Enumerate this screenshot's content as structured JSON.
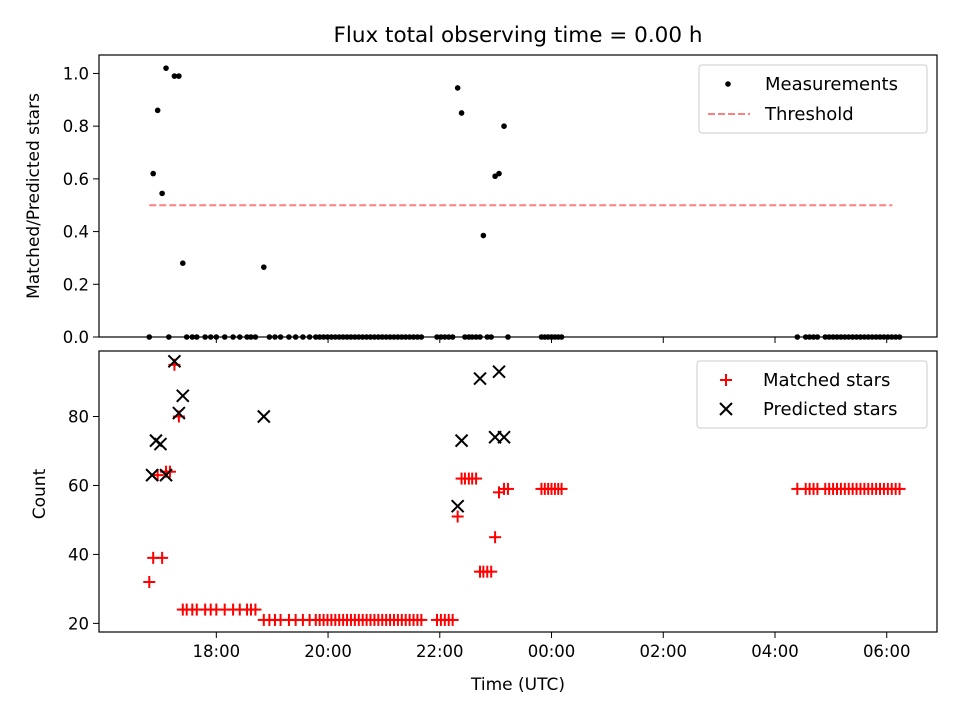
{
  "chart_data": [
    {
      "type": "scatter",
      "title": "Flux total observing time = 0.00 h",
      "ylabel": "Matched/Predicted stars",
      "xlabel": "",
      "xlim_hours": [
        15.9,
        30.9
      ],
      "ylim": [
        0,
        1.07
      ],
      "yticks": [
        0.0,
        0.2,
        0.4,
        0.6,
        0.8,
        1.0
      ],
      "ytick_labels": [
        "0.0",
        "0.2",
        "0.4",
        "0.6",
        "0.8",
        "1.0"
      ],
      "xticks_hours": [
        18,
        20,
        22,
        24,
        26,
        28,
        30
      ],
      "legend": {
        "placement": "top-right",
        "entries": [
          "Measurements",
          "Threshold"
        ]
      },
      "threshold": {
        "value": 0.5,
        "x_start": 16.8,
        "x_end": 30.1,
        "color": "#ff7f7f"
      },
      "series": [
        {
          "name": "Measurements",
          "color": "#000000",
          "points": [
            [
              16.8,
              0.0
            ],
            [
              16.87,
              0.62
            ],
            [
              16.95,
              0.86
            ],
            [
              17.03,
              0.545
            ],
            [
              17.1,
              1.02
            ],
            [
              17.15,
              0.0
            ],
            [
              17.25,
              0.99
            ],
            [
              17.33,
              0.99
            ],
            [
              17.4,
              0.28
            ],
            [
              17.47,
              0.0
            ],
            [
              17.57,
              0.0
            ],
            [
              17.65,
              0.0
            ],
            [
              17.8,
              0.0
            ],
            [
              17.9,
              0.0
            ],
            [
              18.0,
              0.0
            ],
            [
              18.15,
              0.0
            ],
            [
              18.3,
              0.0
            ],
            [
              18.42,
              0.0
            ],
            [
              18.55,
              0.0
            ],
            [
              18.62,
              0.0
            ],
            [
              18.7,
              0.0
            ],
            [
              18.85,
              0.265
            ],
            [
              18.95,
              0.0
            ],
            [
              19.05,
              0.0
            ],
            [
              19.15,
              0.0
            ],
            [
              19.3,
              0.0
            ],
            [
              19.42,
              0.0
            ],
            [
              19.55,
              0.0
            ],
            [
              19.67,
              0.0
            ],
            [
              19.78,
              0.0
            ],
            [
              19.85,
              0.0
            ],
            [
              19.92,
              0.0
            ],
            [
              19.99,
              0.0
            ],
            [
              20.06,
              0.0
            ],
            [
              20.13,
              0.0
            ],
            [
              20.2,
              0.0
            ],
            [
              20.27,
              0.0
            ],
            [
              20.34,
              0.0
            ],
            [
              20.41,
              0.0
            ],
            [
              20.48,
              0.0
            ],
            [
              20.55,
              0.0
            ],
            [
              20.62,
              0.0
            ],
            [
              20.69,
              0.0
            ],
            [
              20.76,
              0.0
            ],
            [
              20.83,
              0.0
            ],
            [
              20.9,
              0.0
            ],
            [
              20.97,
              0.0
            ],
            [
              21.04,
              0.0
            ],
            [
              21.11,
              0.0
            ],
            [
              21.18,
              0.0
            ],
            [
              21.25,
              0.0
            ],
            [
              21.32,
              0.0
            ],
            [
              21.39,
              0.0
            ],
            [
              21.46,
              0.0
            ],
            [
              21.53,
              0.0
            ],
            [
              21.6,
              0.0
            ],
            [
              21.67,
              0.0
            ],
            [
              21.95,
              0.0
            ],
            [
              22.02,
              0.0
            ],
            [
              22.09,
              0.0
            ],
            [
              22.16,
              0.0
            ],
            [
              22.23,
              0.0
            ],
            [
              22.32,
              0.945
            ],
            [
              22.39,
              0.85
            ],
            [
              22.45,
              0.0
            ],
            [
              22.52,
              0.0
            ],
            [
              22.58,
              0.0
            ],
            [
              22.65,
              0.0
            ],
            [
              22.72,
              0.0
            ],
            [
              22.78,
              0.385
            ],
            [
              22.85,
              0.0
            ],
            [
              22.92,
              0.0
            ],
            [
              22.99,
              0.61
            ],
            [
              23.06,
              0.62
            ],
            [
              23.15,
              0.8
            ],
            [
              23.22,
              0.0
            ],
            [
              23.82,
              0.0
            ],
            [
              23.88,
              0.0
            ],
            [
              23.94,
              0.0
            ],
            [
              24.0,
              0.0
            ],
            [
              24.06,
              0.0
            ],
            [
              24.12,
              0.0
            ],
            [
              24.18,
              0.0
            ],
            [
              28.4,
              0.0
            ],
            [
              28.55,
              0.0
            ],
            [
              28.62,
              0.0
            ],
            [
              28.69,
              0.0
            ],
            [
              28.76,
              0.0
            ],
            [
              28.9,
              0.0
            ],
            [
              28.97,
              0.0
            ],
            [
              29.04,
              0.0
            ],
            [
              29.11,
              0.0
            ],
            [
              29.18,
              0.0
            ],
            [
              29.25,
              0.0
            ],
            [
              29.32,
              0.0
            ],
            [
              29.39,
              0.0
            ],
            [
              29.46,
              0.0
            ],
            [
              29.53,
              0.0
            ],
            [
              29.6,
              0.0
            ],
            [
              29.67,
              0.0
            ],
            [
              29.74,
              0.0
            ],
            [
              29.81,
              0.0
            ],
            [
              29.88,
              0.0
            ],
            [
              29.95,
              0.0
            ],
            [
              30.02,
              0.0
            ],
            [
              30.09,
              0.0
            ],
            [
              30.16,
              0.0
            ],
            [
              30.23,
              0.0
            ]
          ]
        }
      ]
    },
    {
      "type": "scatter",
      "title": "",
      "ylabel": "Count",
      "xlabel": "Time (UTC)",
      "xlim_hours": [
        15.9,
        30.9
      ],
      "ylim": [
        17.5,
        99
      ],
      "yticks": [
        20,
        40,
        60,
        80
      ],
      "ytick_labels": [
        "20",
        "40",
        "60",
        "80"
      ],
      "xticks_hours": [
        18,
        20,
        22,
        24,
        26,
        28,
        30
      ],
      "xtick_labels": [
        "18:00",
        "20:00",
        "22:00",
        "00:00",
        "02:00",
        "04:00",
        "06:00"
      ],
      "legend": {
        "placement": "top-right",
        "entries": [
          "Matched stars",
          "Predicted stars"
        ]
      },
      "series": [
        {
          "name": "Matched stars",
          "color": "#ff0000",
          "marker": "plus",
          "points": [
            [
              16.8,
              32
            ],
            [
              16.87,
              39
            ],
            [
              16.95,
              63
            ],
            [
              17.03,
              39
            ],
            [
              17.1,
              64
            ],
            [
              17.17,
              64
            ],
            [
              17.25,
              95
            ],
            [
              17.33,
              80
            ],
            [
              17.4,
              24
            ],
            [
              17.47,
              24
            ],
            [
              17.57,
              24
            ],
            [
              17.65,
              24
            ],
            [
              17.8,
              24
            ],
            [
              17.9,
              24
            ],
            [
              18.0,
              24
            ],
            [
              18.15,
              24
            ],
            [
              18.3,
              24
            ],
            [
              18.42,
              24
            ],
            [
              18.55,
              24
            ],
            [
              18.62,
              24
            ],
            [
              18.7,
              24
            ],
            [
              18.85,
              21
            ],
            [
              18.95,
              21
            ],
            [
              19.05,
              21
            ],
            [
              19.15,
              21
            ],
            [
              19.3,
              21
            ],
            [
              19.42,
              21
            ],
            [
              19.55,
              21
            ],
            [
              19.67,
              21
            ],
            [
              19.78,
              21
            ],
            [
              19.85,
              21
            ],
            [
              19.92,
              21
            ],
            [
              19.99,
              21
            ],
            [
              20.06,
              21
            ],
            [
              20.13,
              21
            ],
            [
              20.2,
              21
            ],
            [
              20.27,
              21
            ],
            [
              20.34,
              21
            ],
            [
              20.41,
              21
            ],
            [
              20.48,
              21
            ],
            [
              20.55,
              21
            ],
            [
              20.62,
              21
            ],
            [
              20.69,
              21
            ],
            [
              20.76,
              21
            ],
            [
              20.83,
              21
            ],
            [
              20.9,
              21
            ],
            [
              20.97,
              21
            ],
            [
              21.04,
              21
            ],
            [
              21.11,
              21
            ],
            [
              21.18,
              21
            ],
            [
              21.25,
              21
            ],
            [
              21.32,
              21
            ],
            [
              21.39,
              21
            ],
            [
              21.46,
              21
            ],
            [
              21.53,
              21
            ],
            [
              21.6,
              21
            ],
            [
              21.67,
              21
            ],
            [
              21.95,
              21
            ],
            [
              22.02,
              21
            ],
            [
              22.09,
              21
            ],
            [
              22.16,
              21
            ],
            [
              22.23,
              21
            ],
            [
              22.32,
              51
            ],
            [
              22.39,
              62
            ],
            [
              22.45,
              62
            ],
            [
              22.52,
              62
            ],
            [
              22.58,
              62
            ],
            [
              22.65,
              62
            ],
            [
              22.72,
              35
            ],
            [
              22.78,
              35
            ],
            [
              22.85,
              35
            ],
            [
              22.92,
              35
            ],
            [
              22.99,
              45
            ],
            [
              23.06,
              58
            ],
            [
              23.15,
              59
            ],
            [
              23.22,
              59
            ],
            [
              23.82,
              59
            ],
            [
              23.88,
              59
            ],
            [
              23.94,
              59
            ],
            [
              24.0,
              59
            ],
            [
              24.06,
              59
            ],
            [
              24.12,
              59
            ],
            [
              24.18,
              59
            ],
            [
              28.4,
              59
            ],
            [
              28.55,
              59
            ],
            [
              28.62,
              59
            ],
            [
              28.69,
              59
            ],
            [
              28.76,
              59
            ],
            [
              28.9,
              59
            ],
            [
              28.97,
              59
            ],
            [
              29.04,
              59
            ],
            [
              29.11,
              59
            ],
            [
              29.18,
              59
            ],
            [
              29.25,
              59
            ],
            [
              29.32,
              59
            ],
            [
              29.39,
              59
            ],
            [
              29.46,
              59
            ],
            [
              29.53,
              59
            ],
            [
              29.6,
              59
            ],
            [
              29.67,
              59
            ],
            [
              29.74,
              59
            ],
            [
              29.81,
              59
            ],
            [
              29.88,
              59
            ],
            [
              29.95,
              59
            ],
            [
              30.02,
              59
            ],
            [
              30.09,
              59
            ],
            [
              30.16,
              59
            ],
            [
              30.23,
              59
            ]
          ]
        },
        {
          "name": "Predicted stars",
          "color": "#000000",
          "marker": "x",
          "points": [
            [
              16.85,
              63
            ],
            [
              16.92,
              73
            ],
            [
              17.0,
              72
            ],
            [
              17.1,
              63
            ],
            [
              17.25,
              96
            ],
            [
              17.33,
              81
            ],
            [
              17.4,
              86
            ],
            [
              18.85,
              80
            ],
            [
              22.32,
              54
            ],
            [
              22.39,
              73
            ],
            [
              22.72,
              91
            ],
            [
              22.99,
              74
            ],
            [
              23.06,
              93
            ],
            [
              23.15,
              74
            ]
          ]
        }
      ]
    }
  ]
}
